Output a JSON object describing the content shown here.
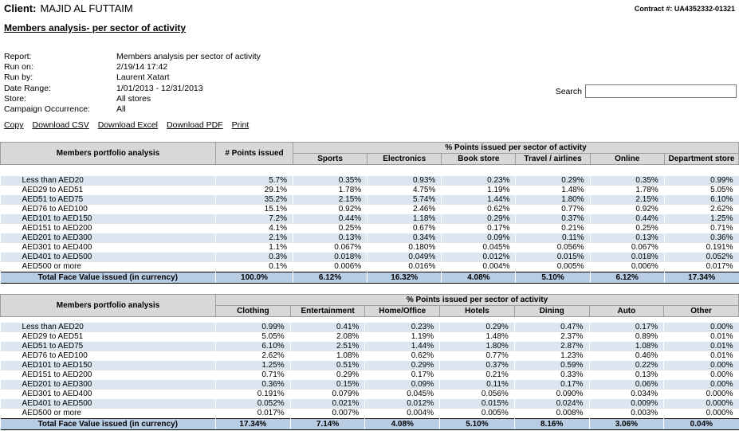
{
  "header": {
    "client_label": "Client:",
    "client_name": "MAJID AL FUTTAIM",
    "contract": "Contract #: UA4352332-01321",
    "title": "Members analysis- per sector of activity"
  },
  "meta": [
    {
      "label": "Report:",
      "value": "Members analysis per sector of activity"
    },
    {
      "label": "Run on:",
      "value": "2/19/14 17:42"
    },
    {
      "label": "Run by:",
      "value": "Laurent Xatart"
    },
    {
      "label": "Date Range:",
      "value": "1/01/2013 - 12/31/2013"
    },
    {
      "label": "Store:",
      "value": "All stores"
    },
    {
      "label": "Campaign Occurrence:",
      "value": "All"
    }
  ],
  "search": {
    "label": "Search",
    "value": ""
  },
  "toolbar": [
    "Copy",
    "Download CSV",
    "Download Excel",
    "Download PDF",
    "Print"
  ],
  "colors": {
    "header_bg": "#d8d8d8",
    "row_stripe": "#dce6f1",
    "total_bg": "#b8cce4",
    "border": "#9e9e9e"
  },
  "table1": {
    "first_col_header": "Members portfolio analysis",
    "points_header": "# Points issued",
    "group_header": "% Points issued per sector of activity",
    "sector_columns": [
      "Sports",
      "Electronics",
      "Book store",
      "Travel / airlines",
      "Online",
      "Department store"
    ],
    "rows": [
      [
        "Less than AED20",
        "5.7%",
        "0.35%",
        "0.93%",
        "0.23%",
        "0.29%",
        "0.35%",
        "0.99%"
      ],
      [
        "AED29 to AED51",
        "29.1%",
        "1.78%",
        "4.75%",
        "1.19%",
        "1.48%",
        "1.78%",
        "5.05%"
      ],
      [
        "AED51 to AED75",
        "35.2%",
        "2.15%",
        "5.74%",
        "1.44%",
        "1.80%",
        "2.15%",
        "6.10%"
      ],
      [
        "AED76 to AED100",
        "15.1%",
        "0.92%",
        "2.46%",
        "0.62%",
        "0.77%",
        "0.92%",
        "2.62%"
      ],
      [
        "AED101 to AED150",
        "7.2%",
        "0.44%",
        "1.18%",
        "0.29%",
        "0.37%",
        "0.44%",
        "1.25%"
      ],
      [
        "AED151 to AED200",
        "4.1%",
        "0.25%",
        "0.67%",
        "0.17%",
        "0.21%",
        "0.25%",
        "0.71%"
      ],
      [
        "AED201 to AED300",
        "2.1%",
        "0.13%",
        "0.34%",
        "0.09%",
        "0.11%",
        "0.13%",
        "0.36%"
      ],
      [
        "AED301 to AED400",
        "1.1%",
        "0.067%",
        "0.180%",
        "0.045%",
        "0.056%",
        "0.067%",
        "0.191%"
      ],
      [
        "AED401 to AED500",
        "0.3%",
        "0.018%",
        "0.049%",
        "0.012%",
        "0.015%",
        "0.018%",
        "0.052%"
      ],
      [
        "AED500 or more",
        "0.1%",
        "0.006%",
        "0.016%",
        "0.004%",
        "0.005%",
        "0.006%",
        "0.017%"
      ]
    ],
    "total": [
      "Total Face Value issued (in currency)",
      "100.0%",
      "6.12%",
      "16.32%",
      "4.08%",
      "5.10%",
      "6.12%",
      "17.34%"
    ]
  },
  "table2": {
    "first_col_header": "Members portfolio analysis",
    "group_header": "% Points issued per sector of activity",
    "sector_columns": [
      "Clothing",
      "Entertainment",
      "Home/Office",
      "Hotels",
      "Dining",
      "Auto",
      "Other"
    ],
    "rows": [
      [
        "Less than AED20",
        "0.99%",
        "0.41%",
        "0.23%",
        "0.29%",
        "0.47%",
        "0.17%",
        "0.00%"
      ],
      [
        "AED29 to AED51",
        "5.05%",
        "2.08%",
        "1.19%",
        "1.48%",
        "2.37%",
        "0.89%",
        "0.01%"
      ],
      [
        "AED51 to AED75",
        "6.10%",
        "2.51%",
        "1.44%",
        "1.80%",
        "2.87%",
        "1.08%",
        "0.01%"
      ],
      [
        "AED76 to AED100",
        "2.62%",
        "1.08%",
        "0.62%",
        "0.77%",
        "1.23%",
        "0.46%",
        "0.01%"
      ],
      [
        "AED101 to AED150",
        "1.25%",
        "0.51%",
        "0.29%",
        "0.37%",
        "0.59%",
        "0.22%",
        "0.00%"
      ],
      [
        "AED151 to AED200",
        "0.71%",
        "0.29%",
        "0.17%",
        "0.21%",
        "0.33%",
        "0.13%",
        "0.00%"
      ],
      [
        "AED201 to AED300",
        "0.36%",
        "0.15%",
        "0.09%",
        "0.11%",
        "0.17%",
        "0.06%",
        "0.00%"
      ],
      [
        "AED301 to AED400",
        "0.191%",
        "0.079%",
        "0.045%",
        "0.056%",
        "0.090%",
        "0.034%",
        "0.000%"
      ],
      [
        "AED401 to AED500",
        "0.052%",
        "0.021%",
        "0.012%",
        "0.015%",
        "0.024%",
        "0.009%",
        "0.000%"
      ],
      [
        "AED500 or more",
        "0.017%",
        "0.007%",
        "0.004%",
        "0.005%",
        "0.008%",
        "0.003%",
        "0.000%"
      ]
    ],
    "total": [
      "Total Face Value issued (in currency)",
      "17.34%",
      "7.14%",
      "4.08%",
      "5.10%",
      "8.16%",
      "3.06%",
      "0.04%"
    ]
  }
}
